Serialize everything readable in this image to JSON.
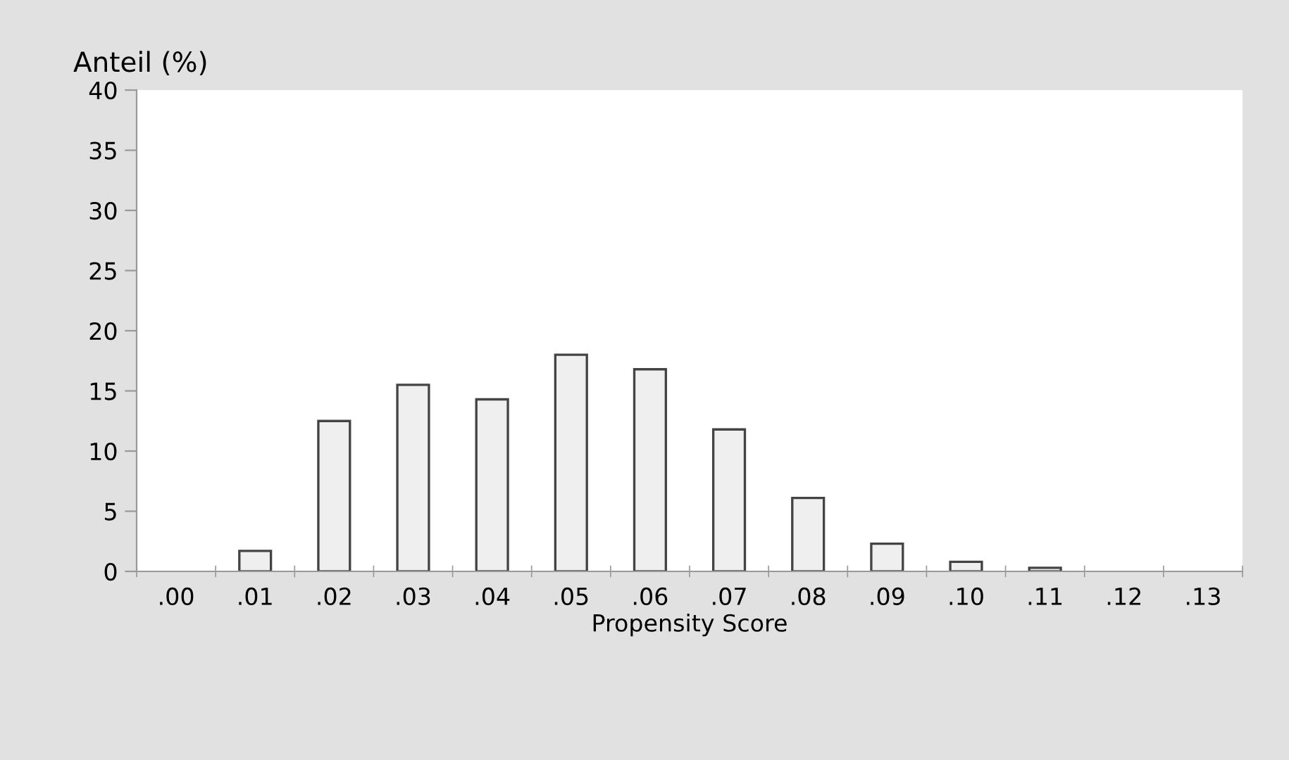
{
  "chart_data": {
    "type": "bar",
    "ylabel": "Anteil (%)",
    "xlabel": "Propensity Score",
    "categories": [
      ".00",
      ".01",
      ".02",
      ".03",
      ".04",
      ".05",
      ".06",
      ".07",
      ".08",
      ".09",
      ".10",
      ".11",
      ".12",
      ".13"
    ],
    "values": [
      0,
      1.7,
      12.5,
      15.5,
      14.3,
      18.0,
      16.8,
      11.8,
      6.1,
      2.3,
      0.8,
      0.3,
      0,
      0
    ],
    "color": "#efefef",
    "ylim": [
      0,
      40
    ],
    "yticks": [
      0,
      5,
      10,
      15,
      20,
      25,
      30,
      35,
      40
    ],
    "grid": false,
    "legend": false
  }
}
